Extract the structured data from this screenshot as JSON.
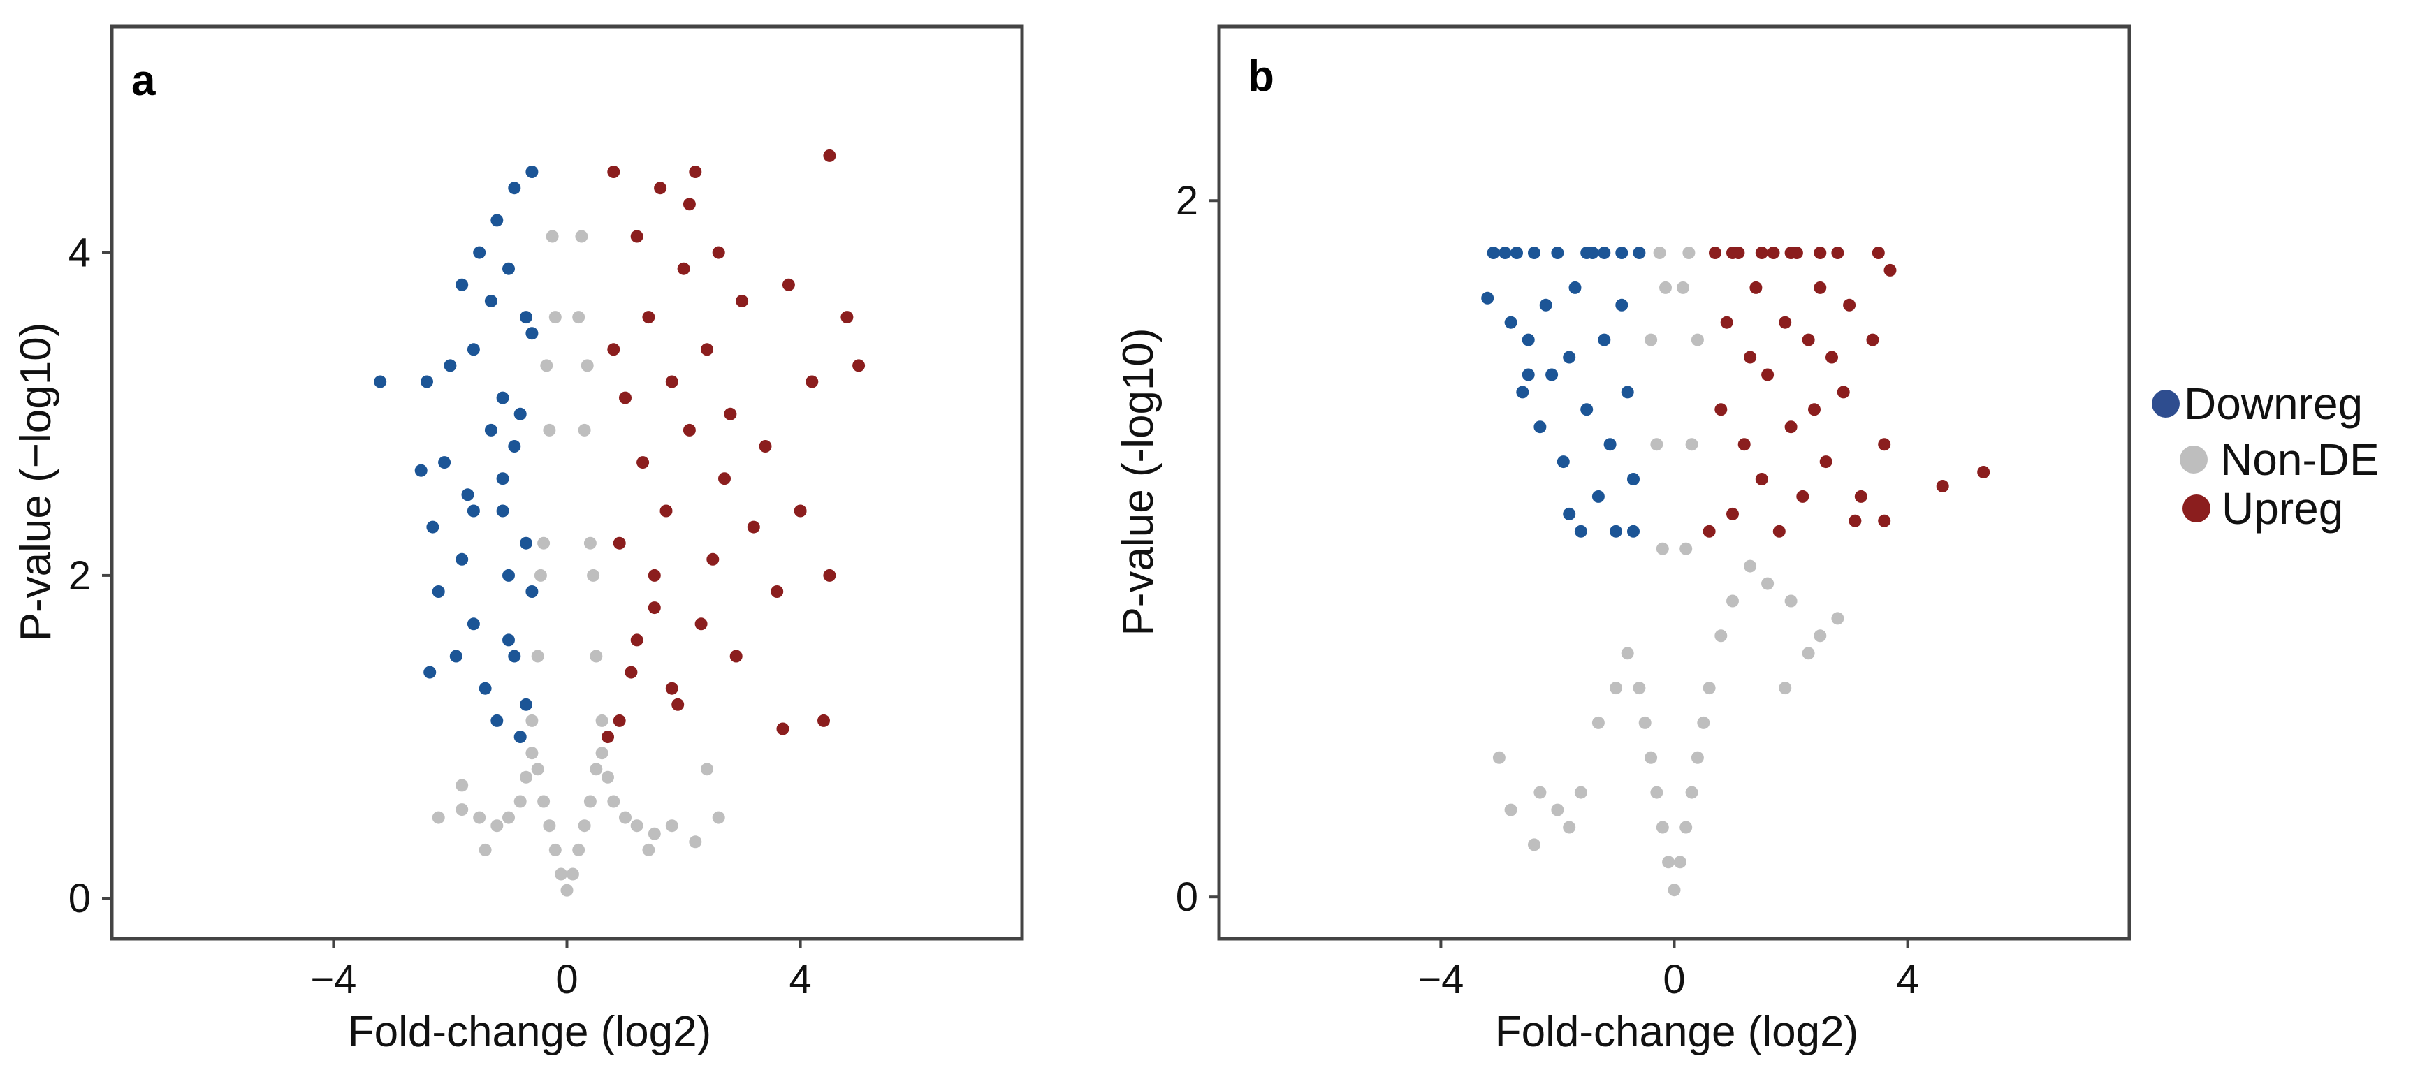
{
  "chart_data": [
    {
      "type": "scatter",
      "panel": "a",
      "title": "",
      "xlabel": "Fold-change (log2)",
      "ylabel": "P-value (−log10)",
      "xlim": [
        -7.8,
        7.8
      ],
      "ylim": [
        -0.25,
        5.4
      ],
      "xticks": [
        -4,
        0,
        4
      ],
      "xtick_labels": [
        "−4",
        "0",
        "4"
      ],
      "yticks": [
        0,
        2,
        4
      ],
      "ytick_labels": [
        "0",
        "2",
        "4"
      ],
      "grid": false,
      "series": [
        {
          "name": "Downreg",
          "color": "#1c5596",
          "x": [
            -3.2,
            -2.5,
            -2.4,
            -2.35,
            -2.3,
            -2.2,
            -2.1,
            -2.0,
            -1.9,
            -1.8,
            -1.8,
            -1.7,
            -1.6,
            -1.6,
            -1.5,
            -1.4,
            -1.3,
            -1.3,
            -1.2,
            -1.1,
            -1.1,
            -1.0,
            -1.0,
            -0.9,
            -0.9,
            -0.8,
            -0.7,
            -0.7,
            -0.6,
            -0.6,
            -0.7,
            -0.8,
            -1.0,
            -1.2,
            -0.9,
            -0.6,
            -1.1,
            -1.6
          ],
          "y": [
            3.2,
            2.65,
            3.2,
            1.4,
            2.3,
            1.9,
            2.7,
            3.3,
            1.5,
            3.8,
            2.1,
            2.5,
            3.4,
            1.7,
            4.0,
            1.3,
            2.9,
            3.7,
            1.1,
            2.4,
            3.1,
            3.9,
            1.6,
            2.8,
            4.4,
            1.0,
            3.6,
            2.2,
            4.5,
            1.9,
            1.2,
            3.0,
            2.0,
            4.2,
            1.5,
            3.5,
            2.6,
            2.4
          ]
        },
        {
          "name": "Non-DE",
          "color": "#bebebe",
          "x": [
            0.0,
            -0.1,
            0.1,
            -0.2,
            0.2,
            -0.3,
            0.3,
            -0.4,
            0.4,
            -0.5,
            0.5,
            -0.6,
            0.6,
            -0.7,
            0.7,
            -0.8,
            0.8,
            -1.0,
            1.0,
            -1.2,
            1.2,
            -1.5,
            1.5,
            -1.8,
            1.8,
            -2.2,
            2.2,
            2.6,
            -0.5,
            0.5,
            -0.4,
            0.4,
            -0.3,
            0.3,
            -0.2,
            0.2,
            -0.6,
            0.6,
            -0.35,
            0.35,
            -0.45,
            0.45,
            -0.25,
            0.25,
            -1.4,
            1.4,
            -1.8,
            2.4
          ],
          "y": [
            0.05,
            0.15,
            0.15,
            0.3,
            0.3,
            0.45,
            0.45,
            0.6,
            0.6,
            0.8,
            0.8,
            0.9,
            0.9,
            0.75,
            0.75,
            0.6,
            0.6,
            0.5,
            0.5,
            0.45,
            0.45,
            0.5,
            0.4,
            0.55,
            0.45,
            0.5,
            0.35,
            0.5,
            1.5,
            1.5,
            2.2,
            2.2,
            2.9,
            2.9,
            3.6,
            3.6,
            1.1,
            1.1,
            3.3,
            3.3,
            2.0,
            2.0,
            4.1,
            4.1,
            0.3,
            0.3,
            0.7,
            0.8
          ]
        },
        {
          "name": "Upreg",
          "color": "#8b1e1e",
          "x": [
            0.7,
            0.8,
            0.9,
            1.0,
            1.1,
            1.2,
            1.3,
            1.4,
            1.5,
            1.6,
            1.7,
            1.8,
            1.9,
            2.0,
            2.1,
            2.2,
            2.3,
            2.4,
            2.5,
            2.6,
            2.7,
            2.8,
            2.9,
            3.0,
            3.2,
            3.4,
            3.6,
            3.8,
            4.0,
            4.2,
            4.5,
            4.8,
            5.0,
            0.9,
            1.2,
            1.5,
            1.8,
            2.1,
            3.7,
            4.4,
            0.8,
            4.5
          ],
          "y": [
            1.0,
            4.5,
            2.2,
            3.1,
            1.4,
            4.1,
            2.7,
            3.6,
            1.8,
            4.4,
            2.4,
            3.2,
            1.2,
            3.9,
            2.9,
            4.5,
            1.7,
            3.4,
            2.1,
            4.0,
            2.6,
            3.0,
            1.5,
            3.7,
            2.3,
            2.8,
            1.9,
            3.8,
            2.4,
            3.2,
            2.0,
            3.6,
            3.3,
            1.1,
            1.6,
            2.0,
            1.3,
            4.3,
            1.05,
            1.1,
            3.4,
            4.6
          ]
        }
      ]
    },
    {
      "type": "scatter",
      "panel": "b",
      "title": "",
      "xlabel": "Fold-change (log2)",
      "ylabel": "P-value (-log10)",
      "xlim": [
        -7.8,
        7.8
      ],
      "ylim": [
        -0.12,
        2.5
      ],
      "xticks": [
        -4,
        0,
        4
      ],
      "xtick_labels": [
        "−4",
        "0",
        "4"
      ],
      "yticks": [
        0,
        2
      ],
      "ytick_labels": [
        "0",
        "2"
      ],
      "grid": false,
      "series": [
        {
          "name": "Downreg",
          "color": "#1c5596",
          "x": [
            -3.2,
            -3.1,
            -2.9,
            -2.8,
            -2.7,
            -2.6,
            -2.5,
            -2.4,
            -2.3,
            -2.2,
            -2.1,
            -2.0,
            -1.9,
            -1.8,
            -1.7,
            -1.6,
            -1.5,
            -1.4,
            -1.3,
            -1.2,
            -1.1,
            -1.0,
            -0.9,
            -0.8,
            -0.7,
            -0.6,
            -1.5,
            -1.2,
            -0.9,
            -0.7,
            -1.8,
            -2.5
          ],
          "y": [
            1.72,
            1.85,
            1.85,
            1.65,
            1.85,
            1.45,
            1.6,
            1.85,
            1.35,
            1.7,
            1.5,
            1.85,
            1.25,
            1.55,
            1.75,
            1.05,
            1.4,
            1.85,
            1.15,
            1.6,
            1.3,
            1.05,
            1.7,
            1.45,
            1.2,
            1.85,
            1.85,
            1.85,
            1.85,
            1.05,
            1.1,
            1.5
          ]
        },
        {
          "name": "Non-DE",
          "color": "#bebebe",
          "x": [
            0.0,
            -0.1,
            0.1,
            -0.2,
            0.2,
            -0.3,
            0.3,
            -0.4,
            0.4,
            -0.5,
            0.5,
            -0.6,
            0.6,
            -0.8,
            0.8,
            -1.0,
            1.0,
            -1.3,
            1.3,
            -1.6,
            1.6,
            -2.0,
            2.0,
            -2.3,
            2.3,
            -2.8,
            2.8,
            -3.0,
            -0.2,
            0.2,
            -0.3,
            0.3,
            -0.4,
            0.4,
            -0.15,
            0.15,
            -0.25,
            0.25,
            -1.8,
            1.9,
            -2.4,
            2.5
          ],
          "y": [
            0.02,
            0.1,
            0.1,
            0.2,
            0.2,
            0.3,
            0.3,
            0.4,
            0.4,
            0.5,
            0.5,
            0.6,
            0.6,
            0.7,
            0.75,
            0.6,
            0.85,
            0.5,
            0.95,
            0.3,
            0.9,
            0.25,
            0.85,
            0.3,
            0.7,
            0.25,
            0.8,
            0.4,
            1.0,
            1.0,
            1.3,
            1.3,
            1.6,
            1.6,
            1.75,
            1.75,
            1.85,
            1.85,
            0.2,
            0.6,
            0.15,
            0.75
          ]
        },
        {
          "name": "Upreg",
          "color": "#8b1e1e",
          "x": [
            0.6,
            0.7,
            0.8,
            0.9,
            1.0,
            1.1,
            1.2,
            1.3,
            1.4,
            1.5,
            1.6,
            1.7,
            1.8,
            1.9,
            2.0,
            2.1,
            2.2,
            2.3,
            2.4,
            2.5,
            2.6,
            2.7,
            2.8,
            2.9,
            3.0,
            3.2,
            3.4,
            3.5,
            3.6,
            3.7,
            4.6,
            5.3,
            1.0,
            1.5,
            2.0,
            2.5,
            3.1,
            3.6
          ],
          "y": [
            1.05,
            1.85,
            1.4,
            1.65,
            1.1,
            1.85,
            1.3,
            1.55,
            1.75,
            1.2,
            1.5,
            1.85,
            1.05,
            1.65,
            1.35,
            1.85,
            1.15,
            1.6,
            1.4,
            1.75,
            1.25,
            1.55,
            1.85,
            1.45,
            1.7,
            1.15,
            1.6,
            1.85,
            1.3,
            1.8,
            1.18,
            1.22,
            1.85,
            1.85,
            1.85,
            1.85,
            1.08,
            1.08
          ]
        }
      ]
    }
  ],
  "legend": {
    "items": [
      {
        "label": "Downreg",
        "color": "#2e4d8f"
      },
      {
        "label": "Non-DE",
        "color": "#bebebe"
      },
      {
        "label": "Upreg",
        "color": "#8b1e1e"
      }
    ]
  }
}
